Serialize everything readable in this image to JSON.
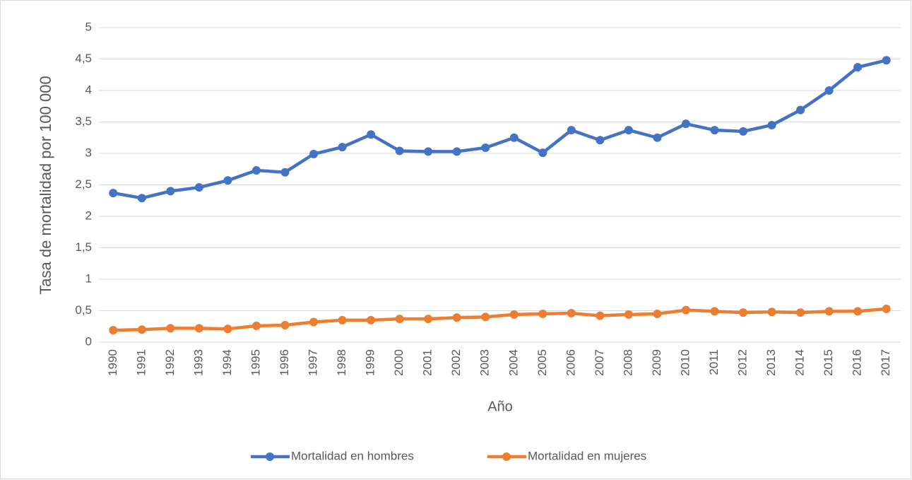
{
  "chart_data": {
    "type": "line",
    "y_label": "Tasa de mortalidad por 100 000",
    "x_label": "Año",
    "categories": [
      "1990",
      "1991",
      "1992",
      "1993",
      "1994",
      "1995",
      "1996",
      "1997",
      "1998",
      "1999",
      "2000",
      "2001",
      "2002",
      "2003",
      "2004",
      "2005",
      "2006",
      "2007",
      "2008",
      "2009",
      "2010",
      "2011",
      "2012",
      "2013",
      "2014",
      "2015",
      "2016",
      "2017"
    ],
    "series": [
      {
        "name": "Mortalidad en hombres",
        "color": "#4472c4",
        "values": [
          2.37,
          2.29,
          2.4,
          2.46,
          2.57,
          2.73,
          2.7,
          2.99,
          3.1,
          3.3,
          3.04,
          3.03,
          3.03,
          3.09,
          3.25,
          3.01,
          3.37,
          3.21,
          3.37,
          3.25,
          3.47,
          3.37,
          3.35,
          3.45,
          3.69,
          4.0,
          4.37,
          4.48
        ]
      },
      {
        "name": "Mortalidad en mujeres",
        "color": "#ed7d31",
        "values": [
          0.19,
          0.2,
          0.22,
          0.22,
          0.21,
          0.26,
          0.27,
          0.32,
          0.35,
          0.35,
          0.37,
          0.37,
          0.39,
          0.4,
          0.44,
          0.45,
          0.46,
          0.42,
          0.44,
          0.45,
          0.51,
          0.49,
          0.47,
          0.48,
          0.47,
          0.49,
          0.49,
          0.53
        ]
      }
    ],
    "ylim": [
      0,
      5
    ],
    "yticks": [
      0,
      {
        "value": 0.5,
        "label": "0,5"
      },
      1,
      {
        "value": 1.5,
        "label": "1,5"
      },
      2,
      {
        "value": 2.5,
        "label": "2,5"
      },
      3,
      {
        "value": 3.5,
        "label": "3,5"
      },
      4,
      {
        "value": 4.5,
        "label": "4,5"
      },
      5
    ],
    "grid": true,
    "legend": "bottom"
  }
}
